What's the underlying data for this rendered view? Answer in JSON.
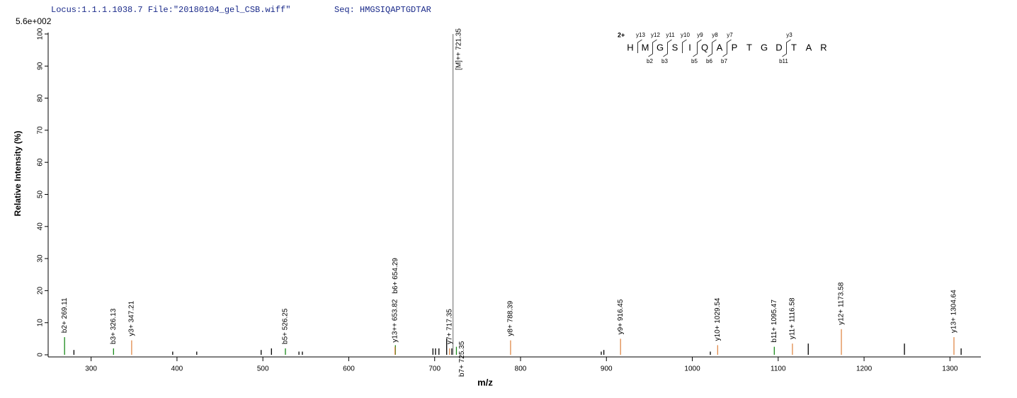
{
  "header": {
    "locus": "Locus:1.1.1.1038.7 File:\"20180104_gel_CSB.wiff\"",
    "seq": "Seq: HMGSIQAPTGDTAR",
    "max_intensity": "5.6e+002"
  },
  "chart_data": {
    "type": "stick",
    "x_label": "m/z",
    "y_label": "Relative  Intensity (%)",
    "xlim": [
      250,
      1336
    ],
    "ylim": [
      0,
      100
    ],
    "xticks": [
      300,
      400,
      500,
      600,
      700,
      800,
      900,
      1000,
      1100,
      1200,
      1300
    ],
    "yticks": [
      0,
      10,
      20,
      30,
      40,
      50,
      60,
      70,
      80,
      90,
      100
    ],
    "series": [
      {
        "name": "b ions",
        "color": "#1a8a1a",
        "x": [
          269.11,
          326.13,
          526.25,
          654.29,
          725.35,
          1095.47
        ],
        "values": [
          5.5,
          2,
          2,
          3,
          2.5,
          2.5
        ],
        "labels": [
          "b2+ 269.11",
          "b3+ 326.13",
          "b5+ 526.25",
          "b6+ 654.29",
          "b7+ 725.35",
          "b11+ 1095.47"
        ]
      },
      {
        "name": "y ions",
        "color": "#e08a4a",
        "x": [
          347.21,
          653.82,
          717.35,
          788.39,
          916.45,
          1029.54,
          1116.58,
          1173.58,
          1304.64
        ],
        "values": [
          4.5,
          2.5,
          2,
          4.5,
          5,
          3,
          3.5,
          8,
          5.5
        ],
        "labels": [
          "y3+ 347.21",
          "y13++ 653.82",
          "y7+ 717.35",
          "y8+ 788.39",
          "y9+ 916.45",
          "y10+ 1029.54",
          "y11+ 1116.58",
          "y12+ 1173.58",
          "y13+ 1304.64"
        ]
      },
      {
        "name": "precursor",
        "color": "#888888",
        "x": [
          721.35
        ],
        "values": [
          100
        ],
        "labels": [
          "[M]++ 721.35"
        ]
      },
      {
        "name": "unassigned",
        "color": "#000000",
        "x": [
          280,
          395,
          423,
          498,
          510,
          542,
          546,
          698,
          701,
          705,
          714,
          720,
          894,
          897,
          1021,
          1135,
          1247,
          1313
        ],
        "values": [
          1.5,
          1,
          1,
          1.5,
          2,
          1,
          1,
          2,
          2,
          2,
          5,
          2,
          1,
          1.5,
          1,
          3.5,
          3.5,
          2
        ]
      }
    ]
  },
  "fragment_map": {
    "charge": "2+",
    "sequence": [
      "H",
      "M",
      "G",
      "S",
      "I",
      "Q",
      "A",
      "P",
      "T",
      "G",
      "D",
      "T",
      "A",
      "R"
    ],
    "y_ions": [
      "y13",
      "y12",
      "y11",
      "y10",
      "y9",
      "y8",
      "y7",
      "y3"
    ],
    "b_ions": [
      "b2",
      "b3",
      "b5",
      "b6",
      "b7",
      "b11"
    ]
  }
}
